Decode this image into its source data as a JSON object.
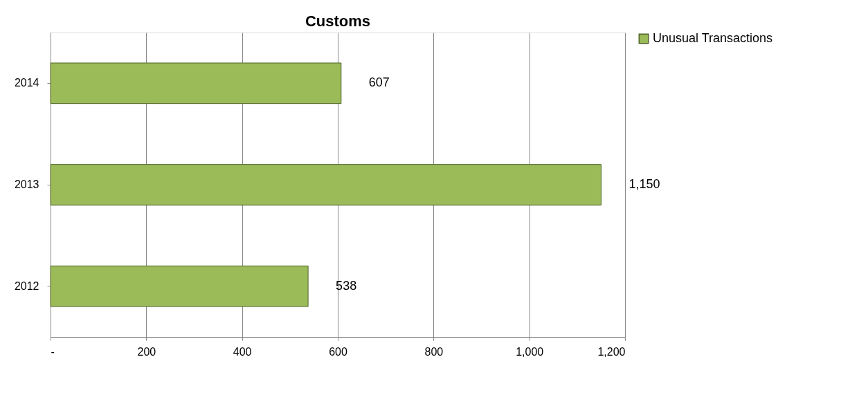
{
  "chart_data": {
    "type": "bar",
    "orientation": "horizontal",
    "title": "Customs",
    "categories": [
      "2014",
      "2013",
      "2012"
    ],
    "series": [
      {
        "name": "Unusual Transactions",
        "color": "#9bbb59",
        "values": [
          607,
          1150,
          538
        ]
      }
    ],
    "value_labels": [
      "607",
      "1,150",
      "538"
    ],
    "xlim": [
      0,
      1200
    ],
    "xticks": [
      {
        "value": 0,
        "label": "-"
      },
      200,
      400,
      600,
      800,
      {
        "value": 1000,
        "label": "1,000"
      },
      {
        "value": 1200,
        "label": "1,200"
      }
    ],
    "grid": "x",
    "legend": "right"
  }
}
